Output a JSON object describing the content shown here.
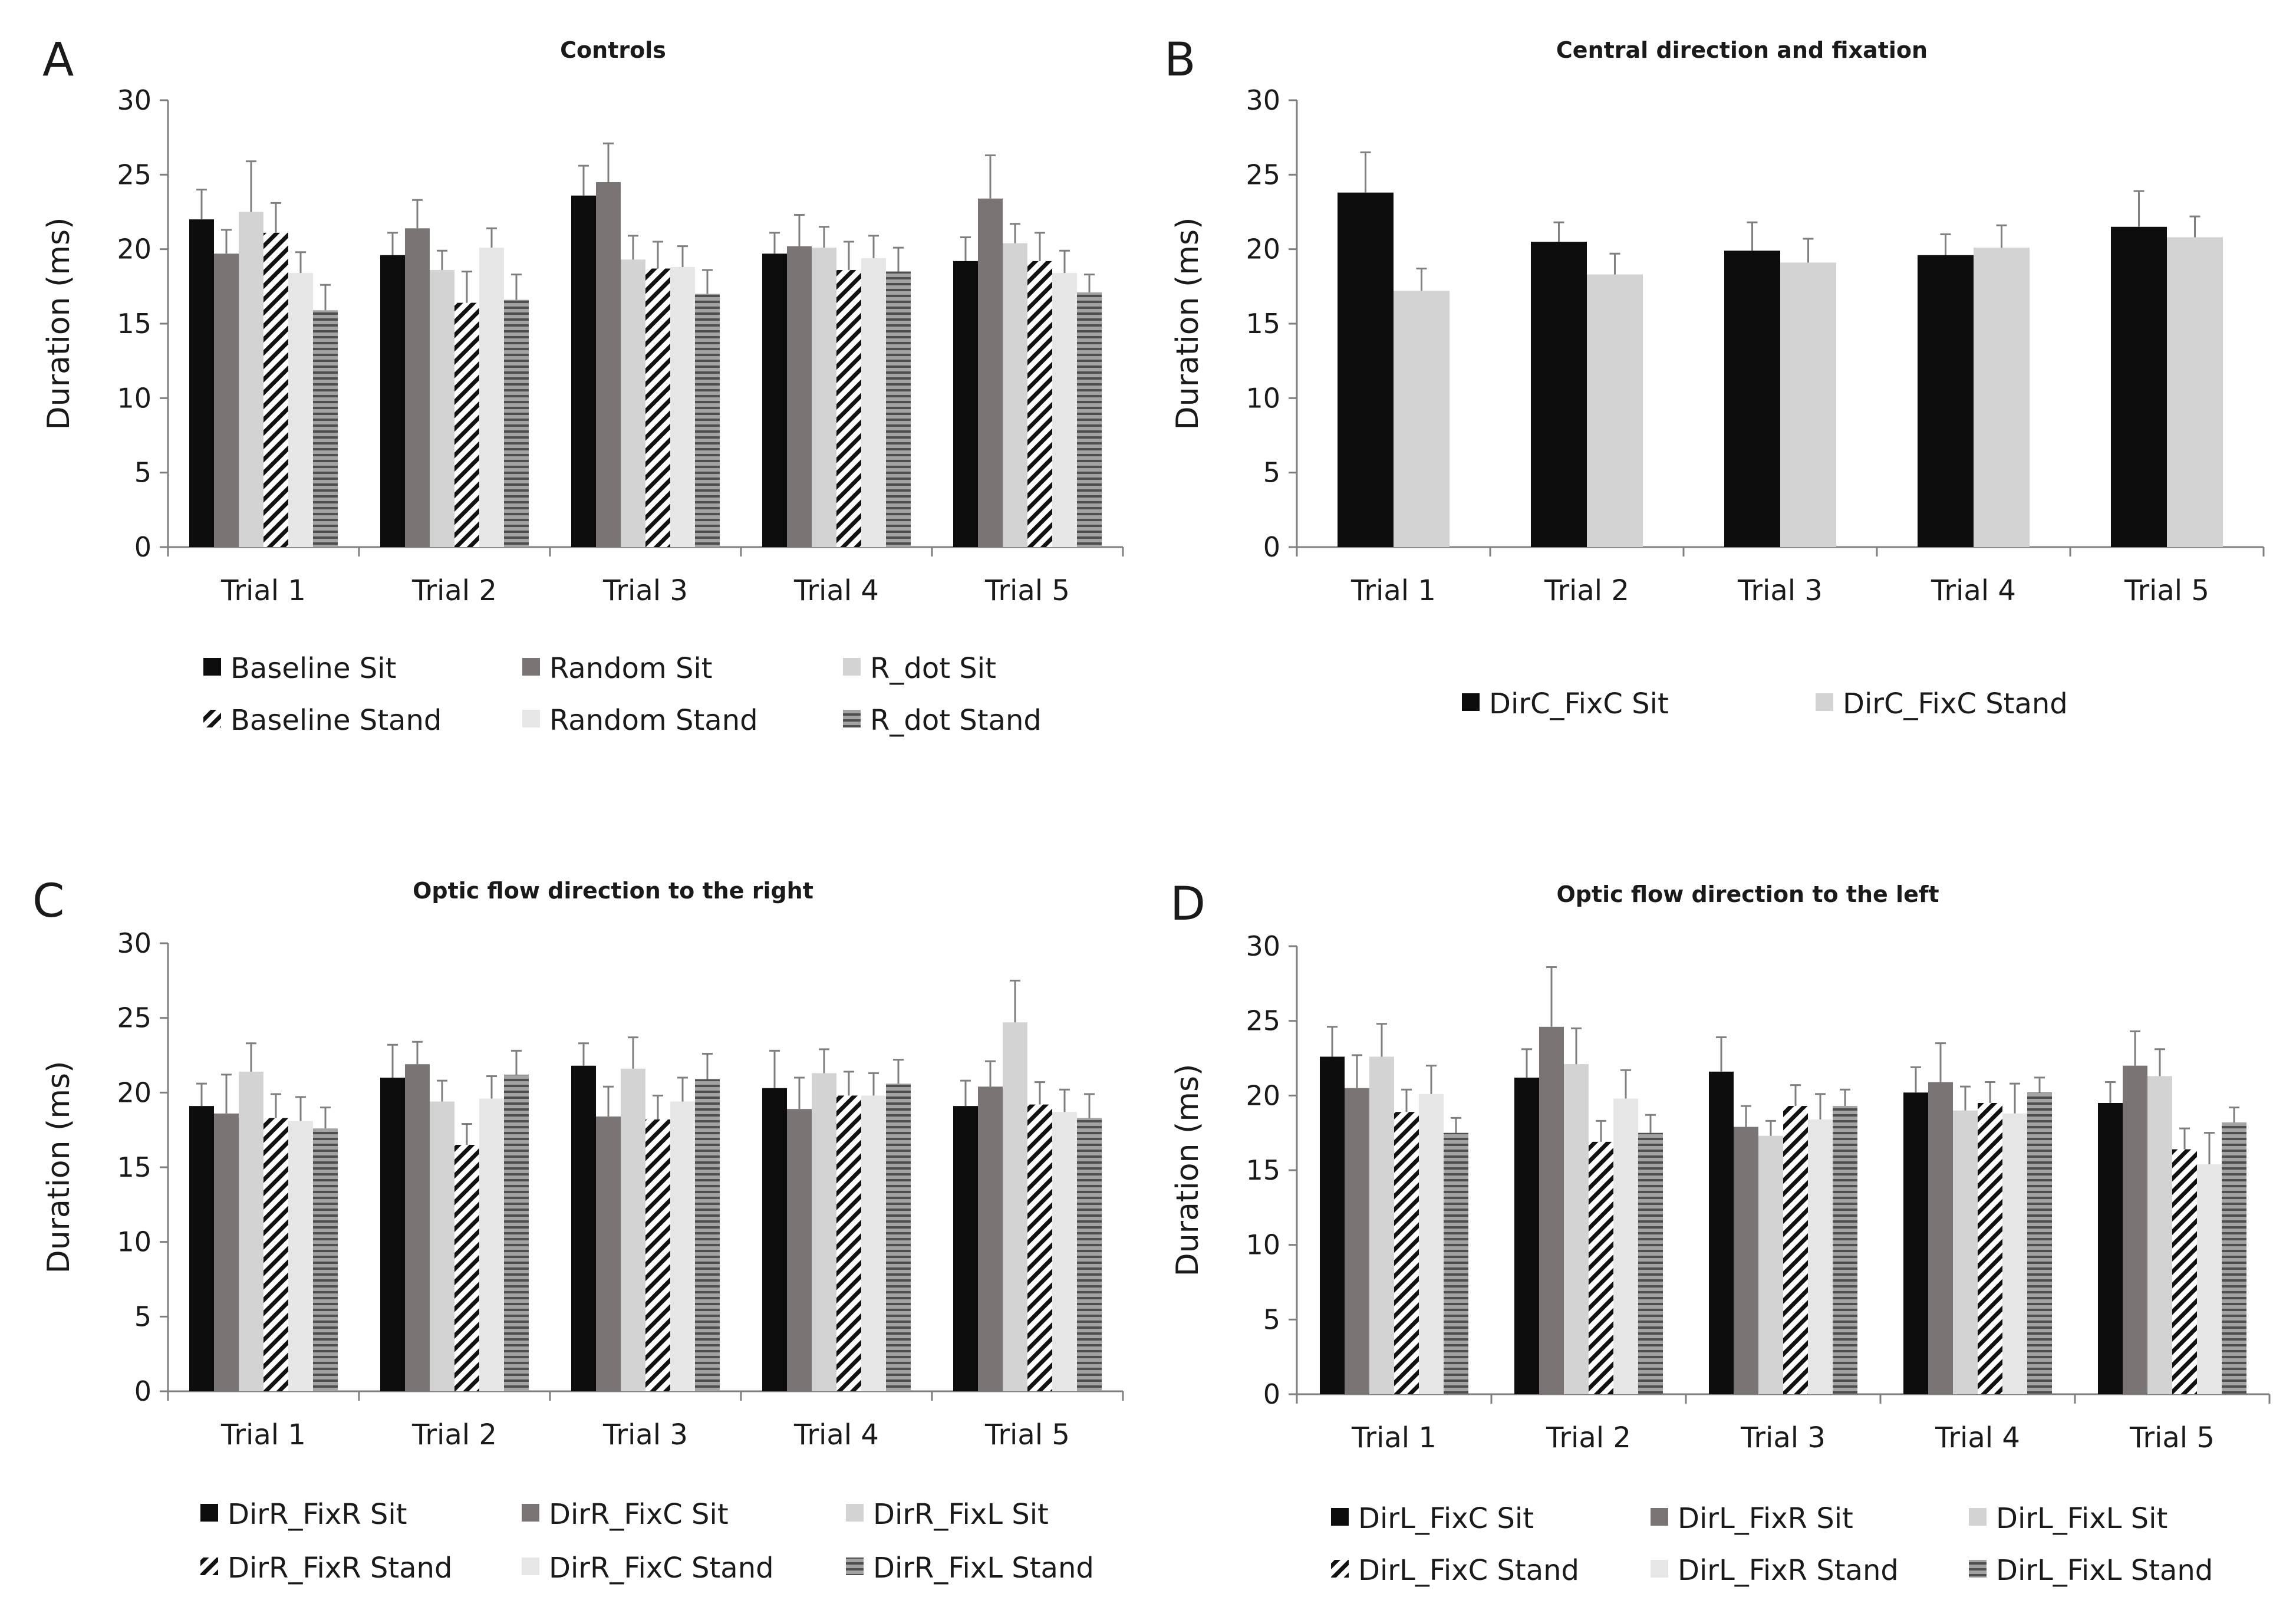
{
  "figure": {
    "colors": {
      "black": "#0d0d0d",
      "darkgray": "#7a7474",
      "lightgray": "#d3d3d3",
      "lightergray": "#e6e6e6",
      "hatch_stroke": "#111111",
      "hstripe_fill": "#9a9a9a",
      "hstripe_stroke": "#4d4d4d",
      "axis": "#7f7f7f",
      "text": "#1a1a1a"
    }
  },
  "chart_data": [
    {
      "panel": "A",
      "type": "bar",
      "title": "Controls",
      "xlabel": "",
      "ylabel": "Duration (ms)",
      "ylim": [
        0,
        30
      ],
      "yticks": [
        0,
        5,
        10,
        15,
        20,
        25,
        30
      ],
      "categories": [
        "Trial 1",
        "Trial 2",
        "Trial 3",
        "Trial 4",
        "Trial 5"
      ],
      "series": [
        {
          "name": "Baseline Sit",
          "style": "black",
          "values": [
            22.0,
            19.6,
            23.6,
            19.7,
            19.2
          ],
          "errors": [
            2.0,
            1.5,
            2.0,
            1.4,
            1.6
          ]
        },
        {
          "name": "Random Sit",
          "style": "darkgray",
          "values": [
            19.7,
            21.4,
            24.5,
            20.2,
            23.4
          ],
          "errors": [
            1.6,
            1.9,
            2.6,
            2.1,
            2.9
          ]
        },
        {
          "name": "R_dot Sit",
          "style": "lightgray",
          "values": [
            22.5,
            18.6,
            19.3,
            20.1,
            20.4
          ],
          "errors": [
            3.4,
            1.3,
            1.6,
            1.4,
            1.3
          ]
        },
        {
          "name": "Baseline Stand",
          "style": "hatch",
          "values": [
            21.1,
            16.4,
            18.7,
            18.6,
            19.2
          ],
          "errors": [
            2.0,
            2.1,
            1.8,
            1.9,
            1.9
          ]
        },
        {
          "name": "Random Stand",
          "style": "lightergray",
          "values": [
            18.4,
            20.1,
            18.8,
            19.4,
            18.4
          ],
          "errors": [
            1.4,
            1.3,
            1.4,
            1.5,
            1.5
          ]
        },
        {
          "name": "R_dot Stand",
          "style": "hstripe",
          "values": [
            15.9,
            16.6,
            17.0,
            18.5,
            17.1
          ],
          "errors": [
            1.7,
            1.7,
            1.6,
            1.6,
            1.2
          ]
        }
      ],
      "legend": {
        "columns": 3,
        "order": [
          "Baseline Sit",
          "Random Sit",
          "R_dot Sit",
          "Baseline Stand",
          "Random Stand",
          "R_dot Stand"
        ]
      }
    },
    {
      "panel": "B",
      "type": "bar",
      "title": "Central direction and fixation",
      "xlabel": "",
      "ylabel": "Duration (ms)",
      "ylim": [
        0,
        30
      ],
      "yticks": [
        0,
        5,
        10,
        15,
        20,
        25,
        30
      ],
      "categories": [
        "Trial 1",
        "Trial 2",
        "Trial 3",
        "Trial 4",
        "Trial 5"
      ],
      "series": [
        {
          "name": "DirC_FixC Sit",
          "style": "black",
          "values": [
            23.8,
            20.5,
            19.9,
            19.6,
            21.5
          ],
          "errors": [
            2.7,
            1.3,
            1.9,
            1.4,
            2.4
          ]
        },
        {
          "name": "DirC_FixC Stand",
          "style": "lightgray",
          "values": [
            17.2,
            18.3,
            19.1,
            20.1,
            20.8
          ],
          "errors": [
            1.5,
            1.4,
            1.6,
            1.5,
            1.4
          ]
        }
      ],
      "legend": {
        "columns": 2,
        "order": [
          "DirC_FixC Sit",
          "DirC_FixC Stand"
        ]
      }
    },
    {
      "panel": "C",
      "type": "bar",
      "title": "Optic flow direction to the right",
      "xlabel": "",
      "ylabel": "Duration (ms)",
      "ylim": [
        0,
        30
      ],
      "yticks": [
        0,
        5,
        10,
        15,
        20,
        25,
        30
      ],
      "categories": [
        "Trial 1",
        "Trial 2",
        "Trial 3",
        "Trial 4",
        "Trial 5"
      ],
      "series": [
        {
          "name": "DirR_FixR Sit",
          "style": "black",
          "values": [
            19.1,
            21.0,
            21.8,
            20.3,
            19.1
          ],
          "errors": [
            1.5,
            2.2,
            1.5,
            2.5,
            1.7
          ]
        },
        {
          "name": "DirR_FixC Sit",
          "style": "darkgray",
          "values": [
            18.6,
            21.9,
            18.4,
            18.9,
            20.4
          ],
          "errors": [
            2.6,
            1.5,
            2.0,
            2.1,
            1.7
          ]
        },
        {
          "name": "DirR_FixL Sit",
          "style": "lightgray",
          "values": [
            21.4,
            19.4,
            21.6,
            21.3,
            24.7
          ],
          "errors": [
            1.9,
            1.4,
            2.1,
            1.6,
            2.8
          ]
        },
        {
          "name": "DirR_FixR Stand",
          "style": "hatch",
          "values": [
            18.3,
            16.5,
            18.2,
            19.8,
            19.2
          ],
          "errors": [
            1.6,
            1.4,
            1.6,
            1.6,
            1.5
          ]
        },
        {
          "name": "DirR_FixC Stand",
          "style": "lightergray",
          "values": [
            18.1,
            19.6,
            19.4,
            19.8,
            18.7
          ],
          "errors": [
            1.6,
            1.5,
            1.6,
            1.5,
            1.5
          ]
        },
        {
          "name": "DirR_FixL Stand",
          "style": "hstripe",
          "values": [
            17.6,
            21.2,
            20.9,
            20.6,
            18.3
          ],
          "errors": [
            1.4,
            1.6,
            1.7,
            1.6,
            1.6
          ]
        }
      ],
      "legend": {
        "columns": 3,
        "order": [
          "DirR_FixR Sit",
          "DirR_FixC Sit",
          "DirR_FixL Sit",
          "DirR_FixR Stand",
          "DirR_FixC Stand",
          "DirR_FixL Stand"
        ]
      }
    },
    {
      "panel": "D",
      "type": "bar",
      "title": "Optic flow direction to the left",
      "xlabel": "",
      "ylabel": "Duration (ms)",
      "ylim": [
        0,
        30
      ],
      "yticks": [
        0,
        5,
        10,
        15,
        20,
        25,
        30
      ],
      "categories": [
        "Trial 1",
        "Trial 2",
        "Trial 3",
        "Trial 4",
        "Trial 5"
      ],
      "series": [
        {
          "name": "DirL_FixC Sit",
          "style": "black",
          "values": [
            22.6,
            21.2,
            21.6,
            20.2,
            19.5
          ],
          "errors": [
            2.0,
            1.9,
            2.3,
            1.7,
            1.4
          ]
        },
        {
          "name": "DirL_FixR Sit",
          "style": "darkgray",
          "values": [
            20.5,
            24.6,
            17.9,
            20.9,
            22.0
          ],
          "errors": [
            2.2,
            4.0,
            1.4,
            2.6,
            2.3
          ]
        },
        {
          "name": "DirL_FixL Sit",
          "style": "lightgray",
          "values": [
            22.6,
            22.1,
            17.3,
            19.0,
            21.3
          ],
          "errors": [
            2.2,
            2.4,
            1.0,
            1.6,
            1.8
          ]
        },
        {
          "name": "DirL_FixC Stand",
          "style": "hatch",
          "values": [
            18.9,
            16.9,
            19.3,
            19.5,
            16.4
          ],
          "errors": [
            1.5,
            1.4,
            1.4,
            1.4,
            1.4
          ]
        },
        {
          "name": "DirL_FixR Stand",
          "style": "lightergray",
          "values": [
            20.1,
            19.8,
            18.4,
            18.8,
            15.4
          ],
          "errors": [
            1.9,
            1.9,
            1.7,
            2.0,
            2.1
          ]
        },
        {
          "name": "DirL_FixL Stand",
          "style": "hstripe",
          "values": [
            17.5,
            17.5,
            19.3,
            20.2,
            18.2
          ],
          "errors": [
            1.0,
            1.2,
            1.1,
            1.0,
            1.0
          ]
        }
      ],
      "legend": {
        "columns": 3,
        "order": [
          "DirL_FixC Sit",
          "DirL_FixR Sit",
          "DirL_FixL Sit",
          "DirL_FixC Stand",
          "DirL_FixR Stand",
          "DirL_FixL Stand"
        ]
      }
    }
  ]
}
